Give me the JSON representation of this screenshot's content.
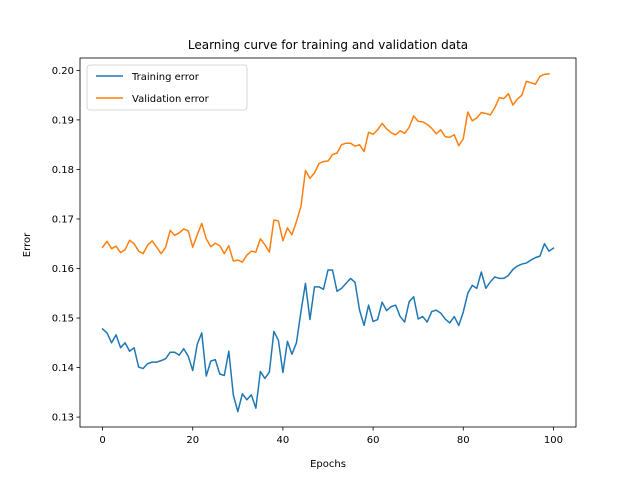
{
  "chart_data": {
    "type": "line",
    "title": "Learning curve for training and validation data",
    "xlabel": "Epochs",
    "ylabel": "Error",
    "xlim": [
      -5,
      105
    ],
    "ylim": [
      0.128,
      0.2025
    ],
    "xticks": [
      0,
      20,
      40,
      60,
      80,
      100
    ],
    "yticks": [
      0.13,
      0.14,
      0.15,
      0.16,
      0.17,
      0.18,
      0.19,
      0.2
    ],
    "ytick_labels": [
      "0.13",
      "0.14",
      "0.15",
      "0.16",
      "0.17",
      "0.18",
      "0.19",
      "0.20"
    ],
    "grid": false,
    "legend_position": "upper-left",
    "series": [
      {
        "name": "Training error",
        "color": "#1f77b4",
        "values": [
          0.1478,
          0.147,
          0.145,
          0.1466,
          0.144,
          0.145,
          0.1433,
          0.144,
          0.1401,
          0.1398,
          0.1408,
          0.1411,
          0.1411,
          0.1414,
          0.1418,
          0.1431,
          0.1431,
          0.1425,
          0.1438,
          0.1423,
          0.1394,
          0.1447,
          0.147,
          0.1383,
          0.1413,
          0.1416,
          0.1387,
          0.1384,
          0.1433,
          0.1345,
          0.1311,
          0.1347,
          0.1335,
          0.1345,
          0.1318,
          0.1392,
          0.1378,
          0.1391,
          0.1473,
          0.1455,
          0.139,
          0.1453,
          0.1427,
          0.145,
          0.1513,
          0.157,
          0.1497,
          0.1563,
          0.1563,
          0.1558,
          0.1597,
          0.1597,
          0.1554,
          0.156,
          0.157,
          0.158,
          0.1572,
          0.1516,
          0.1485,
          0.1526,
          0.1493,
          0.1497,
          0.1532,
          0.1515,
          0.1523,
          0.1526,
          0.1503,
          0.1492,
          0.1533,
          0.1543,
          0.1498,
          0.1503,
          0.1492,
          0.1513,
          0.1516,
          0.151,
          0.1498,
          0.149,
          0.1503,
          0.1485,
          0.1512,
          0.155,
          0.1566,
          0.156,
          0.1593,
          0.156,
          0.1573,
          0.1583,
          0.158,
          0.158,
          0.1586,
          0.1598,
          0.1605,
          0.1609,
          0.1611,
          0.1617,
          0.1622,
          0.1625,
          0.165,
          0.1635,
          0.1641
        ]
      },
      {
        "name": "Validation error",
        "color": "#ff7f0e",
        "values": [
          0.1643,
          0.1655,
          0.164,
          0.1645,
          0.1632,
          0.1638,
          0.1657,
          0.165,
          0.1635,
          0.163,
          0.1647,
          0.1656,
          0.1643,
          0.163,
          0.1643,
          0.1677,
          0.1667,
          0.1672,
          0.168,
          0.1676,
          0.1643,
          0.1668,
          0.1691,
          0.166,
          0.1644,
          0.1651,
          0.1646,
          0.163,
          0.1646,
          0.1615,
          0.1617,
          0.1613,
          0.1627,
          0.1635,
          0.1633,
          0.166,
          0.1648,
          0.1633,
          0.1698,
          0.1696,
          0.1656,
          0.1682,
          0.1668,
          0.1695,
          0.1725,
          0.1798,
          0.1782,
          0.1793,
          0.1812,
          0.1816,
          0.1817,
          0.183,
          0.1833,
          0.185,
          0.1853,
          0.1853,
          0.1847,
          0.185,
          0.1836,
          0.1875,
          0.1871,
          0.188,
          0.1893,
          0.1882,
          0.1874,
          0.187,
          0.1878,
          0.1873,
          0.1885,
          0.1908,
          0.1897,
          0.1896,
          0.1891,
          0.1883,
          0.1872,
          0.188,
          0.1866,
          0.1865,
          0.187,
          0.1848,
          0.1862,
          0.1916,
          0.1898,
          0.1904,
          0.1915,
          0.1913,
          0.191,
          0.1925,
          0.1945,
          0.1943,
          0.1953,
          0.193,
          0.1942,
          0.195,
          0.1978,
          0.1975,
          0.1972,
          0.1988,
          0.1992,
          0.1993
        ]
      }
    ]
  }
}
